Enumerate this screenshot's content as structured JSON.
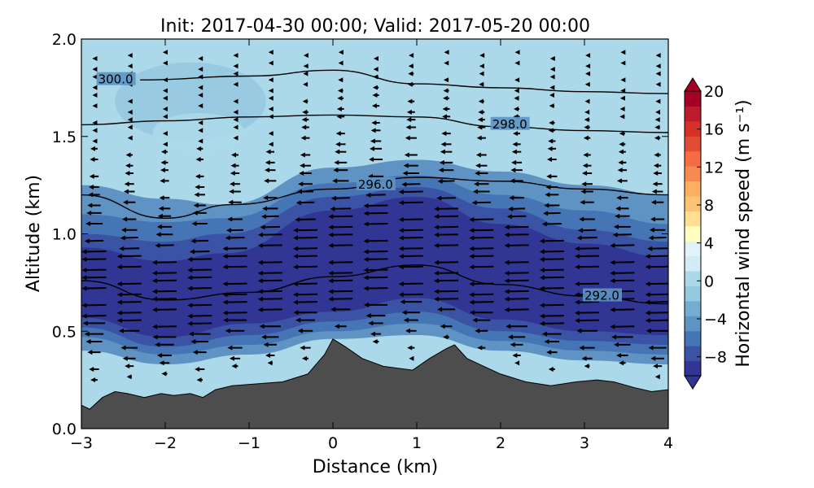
{
  "chart_data": {
    "type": "heatmap",
    "title": "Init: 2017-04-30 00:00; Valid: 2017-05-20 00:00",
    "xlabel": "Distance (km)",
    "ylabel": "Altitude (km)",
    "xlim": [
      -3,
      4
    ],
    "ylim": [
      0,
      2
    ],
    "x_ticks": [
      -3,
      -2,
      -1,
      0,
      1,
      2,
      3,
      4
    ],
    "x_tick_labels": [
      "−3",
      "−2",
      "−1",
      "0",
      "1",
      "2",
      "3",
      "4"
    ],
    "y_ticks": [
      0,
      0.5,
      1,
      1.5,
      2
    ],
    "y_tick_labels": [
      "0.0",
      "0.5",
      "1.0",
      "1.5",
      "2.0"
    ],
    "colorbar": {
      "label": "Horizontal wind speed (m s⁻¹)",
      "range": [
        -10,
        20
      ],
      "extend": "both",
      "ticks": [
        -8,
        -4,
        0,
        4,
        8,
        12,
        16,
        20
      ],
      "tick_labels": [
        "−8",
        "−4",
        "0",
        "4",
        "8",
        "12",
        "16",
        "20"
      ],
      "colors": [
        "#313695",
        "#3b53a4",
        "#4575b4",
        "#5e93c4",
        "#74add1",
        "#96c8e0",
        "#abd9e9",
        "#d1ecf4",
        "#e0f3f8",
        "#fffebe",
        "#fee090",
        "#fdc374",
        "#fdae61",
        "#f68b52",
        "#f46d43",
        "#e04c35",
        "#d73027",
        "#bd1d2a",
        "#a50026"
      ]
    },
    "terrain": {
      "x": [
        -3.0,
        -2.9,
        -2.75,
        -2.6,
        -2.45,
        -2.25,
        -2.05,
        -1.9,
        -1.7,
        -1.55,
        -1.4,
        -1.2,
        -0.9,
        -0.6,
        -0.3,
        -0.1,
        0.0,
        0.15,
        0.35,
        0.6,
        0.95,
        1.15,
        1.35,
        1.45,
        1.6,
        1.8,
        2.0,
        2.3,
        2.6,
        2.9,
        3.15,
        3.35,
        3.6,
        3.8,
        4.0
      ],
      "y": [
        0.12,
        0.1,
        0.16,
        0.19,
        0.18,
        0.16,
        0.18,
        0.17,
        0.18,
        0.16,
        0.2,
        0.22,
        0.23,
        0.24,
        0.28,
        0.38,
        0.46,
        0.42,
        0.36,
        0.32,
        0.3,
        0.36,
        0.41,
        0.43,
        0.36,
        0.32,
        0.28,
        0.24,
        0.22,
        0.24,
        0.25,
        0.24,
        0.21,
        0.19,
        0.2
      ]
    },
    "wind_bands": [
      {
        "value": -9.5,
        "bottom": [
          [
            -3,
            0.57
          ],
          [
            -2,
            0.47
          ],
          [
            -1,
            0.54
          ],
          [
            0,
            0.6
          ],
          [
            1,
            0.67
          ],
          [
            2,
            0.56
          ],
          [
            3,
            0.5
          ],
          [
            4,
            0.48
          ]
        ],
        "top": [
          [
            -3,
            0.93
          ],
          [
            -2,
            0.86
          ],
          [
            -1.3,
            0.9
          ],
          [
            0,
            1.12
          ],
          [
            1,
            1.19
          ],
          [
            2,
            1.05
          ],
          [
            3,
            0.95
          ],
          [
            4,
            0.88
          ]
        ]
      },
      {
        "value": -8,
        "bottom": [
          [
            -3,
            0.52
          ],
          [
            -2,
            0.42
          ],
          [
            -1,
            0.48
          ],
          [
            0,
            0.55
          ],
          [
            1,
            0.6
          ],
          [
            2,
            0.5
          ],
          [
            3,
            0.45
          ],
          [
            4,
            0.43
          ]
        ],
        "top": [
          [
            -3,
            1.0
          ],
          [
            -2,
            0.96
          ],
          [
            -1.3,
            1.0
          ],
          [
            0,
            1.19
          ],
          [
            1,
            1.24
          ],
          [
            2,
            1.13
          ],
          [
            3,
            1.02
          ],
          [
            4,
            0.96
          ]
        ]
      },
      {
        "value": -6,
        "bottom": [
          [
            -3,
            0.47
          ],
          [
            -2,
            0.38
          ],
          [
            -1,
            0.43
          ],
          [
            0,
            0.5
          ],
          [
            1,
            0.54
          ],
          [
            2,
            0.45
          ],
          [
            3,
            0.4
          ],
          [
            4,
            0.38
          ]
        ],
        "top": [
          [
            -3,
            1.1
          ],
          [
            -2,
            1.06
          ],
          [
            -1.3,
            1.08
          ],
          [
            0,
            1.26
          ],
          [
            1,
            1.3
          ],
          [
            2,
            1.2
          ],
          [
            3,
            1.12
          ],
          [
            4,
            1.05
          ]
        ]
      },
      {
        "value": -4,
        "bottom": [
          [
            -3,
            0.4
          ],
          [
            -2,
            0.33
          ],
          [
            -1,
            0.38
          ],
          [
            0,
            0.46
          ],
          [
            1,
            0.48
          ],
          [
            2,
            0.4
          ],
          [
            3,
            0.35
          ],
          [
            4,
            0.33
          ]
        ],
        "top": [
          [
            -3,
            1.25
          ],
          [
            -2,
            1.18
          ],
          [
            -1.3,
            1.15
          ],
          [
            0,
            1.34
          ],
          [
            1,
            1.38
          ],
          [
            2,
            1.32
          ],
          [
            3,
            1.25
          ],
          [
            4,
            1.2
          ]
        ]
      }
    ],
    "weak_wind_patches": [
      {
        "value": -2,
        "center": [
          -1.7,
          1.68
        ],
        "radius": [
          0.9,
          0.2
        ]
      },
      {
        "value": 0,
        "center": [
          -1.6,
          1.52
        ],
        "radius": [
          0.55,
          0.1
        ]
      }
    ],
    "low_level_yellow": {
      "value": 1,
      "top": [
        [
          -3,
          0.27
        ],
        [
          -2,
          0.3
        ],
        [
          -1,
          0.3
        ],
        [
          0,
          0.33
        ],
        [
          1,
          0.38
        ],
        [
          2,
          0.32
        ],
        [
          3,
          0.3
        ],
        [
          4,
          0.28
        ]
      ]
    },
    "isentropes": [
      {
        "label": "292.0",
        "label_pos": [
          3.0,
          0.67
        ],
        "points": [
          [
            -3,
            0.76
          ],
          [
            -2,
            0.66
          ],
          [
            -1,
            0.7
          ],
          [
            0,
            0.78
          ],
          [
            1,
            0.84
          ],
          [
            2,
            0.74
          ],
          [
            3,
            0.68
          ],
          [
            4,
            0.64
          ]
        ]
      },
      {
        "label": "296.0",
        "label_pos": [
          0.3,
          1.24
        ],
        "points": [
          [
            -3,
            1.2
          ],
          [
            -2,
            1.08
          ],
          [
            -1.2,
            1.15
          ],
          [
            0,
            1.23
          ],
          [
            1,
            1.29
          ],
          [
            2,
            1.27
          ],
          [
            3,
            1.23
          ],
          [
            4,
            1.2
          ]
        ]
      },
      {
        "label": "298.0",
        "label_pos": [
          1.9,
          1.55
        ],
        "points": [
          [
            -3,
            1.56
          ],
          [
            -2,
            1.58
          ],
          [
            -1,
            1.6
          ],
          [
            0,
            1.61
          ],
          [
            1,
            1.6
          ],
          [
            2,
            1.55
          ],
          [
            3,
            1.53
          ],
          [
            4,
            1.52
          ]
        ]
      },
      {
        "label": "300.0",
        "label_pos": [
          -2.8,
          1.78
        ],
        "points": [
          [
            -2.3,
            1.79
          ],
          [
            -1,
            1.81
          ],
          [
            0,
            1.84
          ],
          [
            1,
            1.77
          ],
          [
            2,
            1.75
          ],
          [
            3,
            1.73
          ],
          [
            4,
            1.72
          ]
        ]
      }
    ],
    "wind_vectors": "leftward arrows; longest within the strong-wind band"
  }
}
